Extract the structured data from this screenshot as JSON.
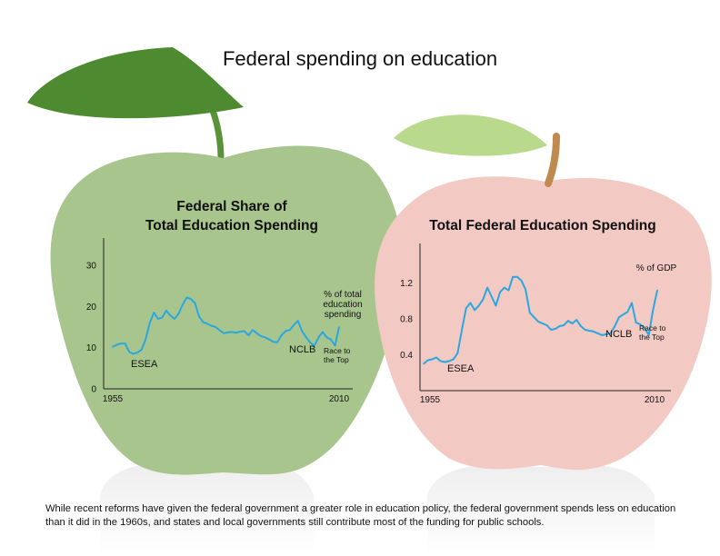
{
  "title": "Federal spending on education",
  "caption": "While recent reforms have given the federal government a greater role in education policy, the federal government spends less on education than it did in the 1960s, and states and local governments still contribute most of the funding for public schools.",
  "colors": {
    "line": "#29a8e0",
    "green_apple": "#a9c58e",
    "green_leaf": "#4e8a2f",
    "red_apple": "#f3c9c3",
    "red_leaf": "#b9d98c",
    "stem_green": "#58933a",
    "stem_red": "#c08a4f"
  },
  "chart_data": [
    {
      "type": "line",
      "title_lines": [
        "Federal Share of",
        "Total Education Spending"
      ],
      "ylim": [
        0,
        30
      ],
      "yticks": [
        0,
        10,
        20,
        30
      ],
      "xlim": [
        1955,
        2010
      ],
      "xtick_labels": [
        "1955",
        "2010"
      ],
      "series": [
        {
          "name": "",
          "x": [
            1955,
            1956,
            1957,
            1958,
            1959,
            1960,
            1961,
            1962,
            1963,
            1964,
            1965,
            1966,
            1967,
            1968,
            1969,
            1970,
            1971,
            1972,
            1973,
            1974,
            1975,
            1976,
            1977,
            1978,
            1979,
            1980,
            1981,
            1982,
            1983,
            1984,
            1985,
            1986,
            1987,
            1988,
            1989,
            1990,
            1991,
            1992,
            1993,
            1994,
            1995,
            1996,
            1997,
            1998,
            1999,
            2000,
            2001,
            2002,
            2003,
            2004,
            2005,
            2006,
            2007,
            2008,
            2009,
            2010
          ],
          "y": [
            10.2,
            10.7,
            11,
            11,
            9,
            8.5,
            8.8,
            9.5,
            12,
            16,
            18.5,
            17,
            17.3,
            19,
            17.8,
            17,
            18.2,
            20.5,
            22.2,
            21.8,
            20.8,
            17.5,
            16.2,
            15.8,
            15.3,
            15,
            14.2,
            13.5,
            13.7,
            13.8,
            13.6,
            13.9,
            14,
            13,
            14.3,
            13.5,
            12.8,
            12.5,
            12,
            11.4,
            11.3,
            13,
            14,
            14.3,
            15.5,
            16.5,
            14,
            12.5,
            11.2,
            10.5,
            12.5,
            13.8,
            12.5,
            12,
            10.5,
            15
          ]
        }
      ],
      "annotations": [
        {
          "text": "ESEA",
          "x": 1965,
          "y": 10
        },
        {
          "text": "NCLB",
          "x": 2001,
          "y": 10
        },
        {
          "text": "Race to the Top",
          "x": 2009,
          "y": 9
        },
        {
          "text": "% of total education spending",
          "x": 2010,
          "y": 20
        }
      ]
    },
    {
      "type": "line",
      "title": "Total Federal Education Spending",
      "ylim": [
        0,
        1.4
      ],
      "yticks": [
        0.4,
        0.8,
        1.2
      ],
      "xlim": [
        1955,
        2010
      ],
      "xtick_labels": [
        "1955",
        "2010"
      ],
      "series": [
        {
          "name": "",
          "x": [
            1955,
            1956,
            1957,
            1958,
            1959,
            1960,
            1961,
            1962,
            1963,
            1964,
            1965,
            1966,
            1967,
            1968,
            1969,
            1970,
            1971,
            1972,
            1973,
            1974,
            1975,
            1976,
            1977,
            1978,
            1979,
            1980,
            1981,
            1982,
            1983,
            1984,
            1985,
            1986,
            1987,
            1988,
            1989,
            1990,
            1991,
            1992,
            1993,
            1994,
            1995,
            1996,
            1997,
            1998,
            1999,
            2000,
            2001,
            2002,
            2003,
            2004,
            2005,
            2006,
            2007,
            2008,
            2009,
            2010
          ],
          "y": [
            0.3,
            0.34,
            0.35,
            0.37,
            0.33,
            0.32,
            0.33,
            0.35,
            0.42,
            0.68,
            0.92,
            0.98,
            0.9,
            0.95,
            1.02,
            1.15,
            1.05,
            0.95,
            1.1,
            1.15,
            1.12,
            1.27,
            1.27,
            1.23,
            1.13,
            0.87,
            0.82,
            0.77,
            0.75,
            0.73,
            0.68,
            0.69,
            0.72,
            0.73,
            0.78,
            0.75,
            0.79,
            0.72,
            0.68,
            0.67,
            0.66,
            0.64,
            0.62,
            0.63,
            0.64,
            0.72,
            0.82,
            0.85,
            0.88,
            0.98,
            0.76,
            0.74,
            0.7,
            0.62,
            0.9,
            1.12
          ]
        }
      ],
      "annotations": [
        {
          "text": "ESEA",
          "x": 1965,
          "y": 0.25
        },
        {
          "text": "NCLB",
          "x": 2001,
          "y": 0.58
        },
        {
          "text": "Race to the Top",
          "x": 2009,
          "y": 0.55
        },
        {
          "text": "% of GDP",
          "x": 2010,
          "y": 1.18
        }
      ]
    }
  ]
}
